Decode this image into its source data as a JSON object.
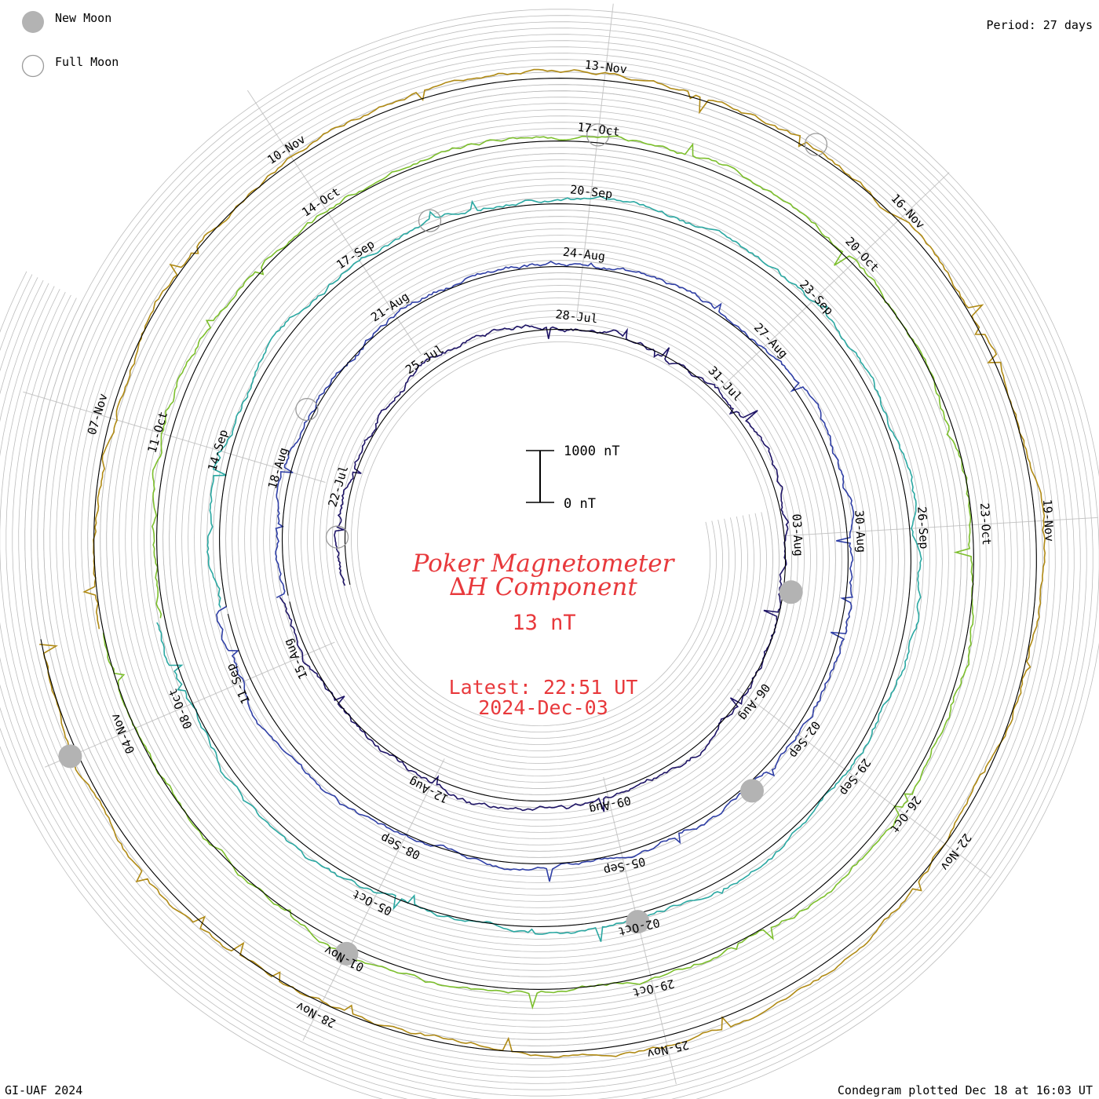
{
  "legend": {
    "new_moon_label": "New Moon",
    "full_moon_label": "Full Moon"
  },
  "period": "Period: 27 days",
  "footer": {
    "left": "GI-UAF 2024",
    "right": "Condegram plotted Dec 18 at 16:03 UT"
  },
  "center": {
    "title": "Poker Magnetometer",
    "component_prefix": "∆",
    "component_italic": "H",
    "component_suffix": " Component",
    "value": "13 nT",
    "latest_line1": "Latest: 22:51 UT",
    "latest_line2": "2024-Dec-03"
  },
  "scale_bar": {
    "top_label": "1000 nT",
    "bottom_label": "0 nT"
  },
  "colors": {
    "title_red": "#e8393c",
    "moon_fill": "#b3b3b3",
    "grid": "#bdbdbd",
    "sectors": "#c8c8c8"
  },
  "chart_data": {
    "type": "line",
    "period_days": 27,
    "plot_start": "2024-07-20",
    "plot_end": "2024-12-03",
    "latest": "2024-12-03 22:51",
    "rotations": [
      {
        "color": "#1e1466",
        "date_labels": [
          "22-Jul",
          "25-Jul",
          "28-Jul",
          "31-Jul",
          "03-Aug",
          "06-Aug",
          "09-Aug",
          "12-Aug",
          "15-Aug"
        ]
      },
      {
        "color": "#2f3fa6",
        "date_labels": [
          "18-Aug",
          "21-Aug",
          "24-Aug",
          "27-Aug",
          "30-Aug",
          "02-Sep",
          "05-Sep",
          "08-Sep",
          "11-Sep"
        ]
      },
      {
        "color": "#2aa8a2",
        "date_labels": [
          "14-Sep",
          "17-Sep",
          "20-Sep",
          "23-Sep",
          "26-Sep",
          "29-Sep",
          "02-Oct",
          "05-Oct",
          "08-Oct"
        ]
      },
      {
        "color": "#7cbf2c",
        "date_labels": [
          "11-Oct",
          "14-Oct",
          "17-Oct",
          "20-Oct",
          "23-Oct",
          "26-Oct",
          "29-Oct",
          "01-Nov",
          "04-Nov"
        ]
      },
      {
        "color": "#b08a14",
        "date_labels": [
          "07-Nov",
          "10-Nov",
          "13-Nov",
          "16-Nov",
          "19-Nov",
          "22-Nov",
          "25-Nov",
          "28-Nov"
        ]
      }
    ],
    "new_moons": [
      "2024-08-04",
      "2024-09-03",
      "2024-10-02",
      "2024-11-01",
      "2024-12-01"
    ],
    "full_moons": [
      "2024-07-21",
      "2024-08-19",
      "2024-09-18",
      "2024-10-17",
      "2024-11-15"
    ]
  }
}
